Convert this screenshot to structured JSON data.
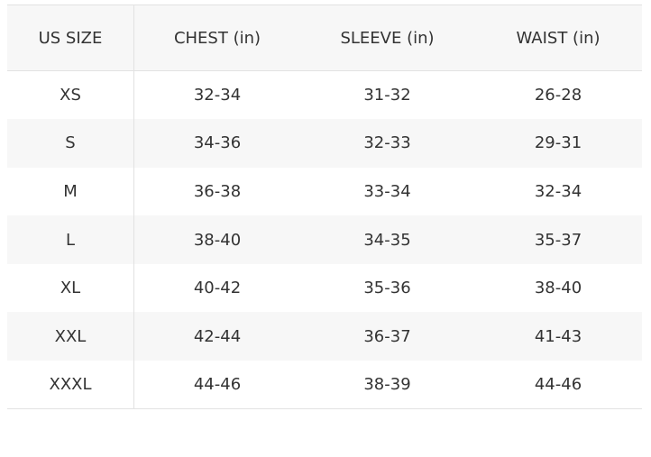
{
  "headers": [
    "US SIZE",
    "CHEST (in)",
    "SLEEVE (in)",
    "WAIST (in)"
  ],
  "rows": [
    [
      "XS",
      "32-34",
      "31-32",
      "26-28"
    ],
    [
      "S",
      "34-36",
      "32-33",
      "29-31"
    ],
    [
      "M",
      "36-38",
      "33-34",
      "32-34"
    ],
    [
      "L",
      "38-40",
      "34-35",
      "35-37"
    ],
    [
      "XL",
      "40-42",
      "35-36",
      "38-40"
    ],
    [
      "XXL",
      "42-44",
      "36-37",
      "41-43"
    ],
    [
      "XXXL",
      "44-46",
      "38-39",
      "44-46"
    ]
  ]
}
